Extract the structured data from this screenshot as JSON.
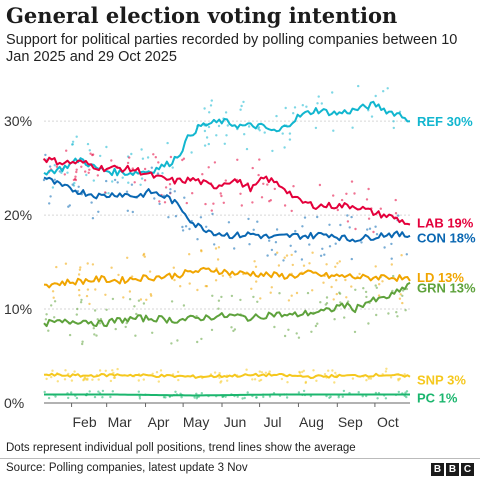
{
  "header": {
    "title": "General election voting intention",
    "subtitle": "Support for political parties recorded by polling companies between 10 Jan 2025 and 29 Oct 2025"
  },
  "footer": {
    "note": "Dots represent individual poll positions, trend lines show the average",
    "source": "Source: Polling companies, latest update 3 Nov",
    "logo": [
      "B",
      "B",
      "C"
    ]
  },
  "chart_data": {
    "type": "line",
    "x_range": [
      "2025-01-10",
      "2025-10-29"
    ],
    "y_range": [
      0,
      33
    ],
    "y_ticks": [
      {
        "value": 0,
        "label": "0%"
      },
      {
        "value": 10,
        "label": "10%"
      },
      {
        "value": 20,
        "label": "20%"
      },
      {
        "value": 30,
        "label": "30%"
      }
    ],
    "x_ticks": [
      {
        "date": "2025-02-01",
        "label": "Feb"
      },
      {
        "date": "2025-03-01",
        "label": "Mar"
      },
      {
        "date": "2025-04-01",
        "label": "Apr"
      },
      {
        "date": "2025-05-01",
        "label": "May"
      },
      {
        "date": "2025-06-01",
        "label": "Jun"
      },
      {
        "date": "2025-07-01",
        "label": "Jul"
      },
      {
        "date": "2025-08-01",
        "label": "Aug"
      },
      {
        "date": "2025-09-01",
        "label": "Sep"
      },
      {
        "date": "2025-10-01",
        "label": "Oct"
      }
    ],
    "series": [
      {
        "name": "REF",
        "label": "REF 30%",
        "color": "#12b6cf",
        "points": [
          [
            "2025-01-10",
            24.5
          ],
          [
            "2025-01-25",
            25.0
          ],
          [
            "2025-02-08",
            26.0
          ],
          [
            "2025-02-20",
            25.0
          ],
          [
            "2025-03-05",
            24.6
          ],
          [
            "2025-03-20",
            24.5
          ],
          [
            "2025-04-05",
            24.7
          ],
          [
            "2025-04-20",
            25.5
          ],
          [
            "2025-04-28",
            26.5
          ],
          [
            "2025-05-06",
            28.5
          ],
          [
            "2025-05-15",
            29.5
          ],
          [
            "2025-06-01",
            30.0
          ],
          [
            "2025-06-15",
            29.5
          ],
          [
            "2025-07-01",
            29.5
          ],
          [
            "2025-07-15",
            28.8
          ],
          [
            "2025-08-01",
            30.5
          ],
          [
            "2025-08-15",
            31.2
          ],
          [
            "2025-09-01",
            30.8
          ],
          [
            "2025-09-15",
            31.2
          ],
          [
            "2025-10-01",
            31.8
          ],
          [
            "2025-10-12",
            31.0
          ],
          [
            "2025-10-20",
            30.8
          ],
          [
            "2025-10-29",
            30.0
          ]
        ]
      },
      {
        "name": "LAB",
        "label": "LAB 19%",
        "color": "#e4003b",
        "points": [
          [
            "2025-01-10",
            26.0
          ],
          [
            "2025-01-25",
            25.6
          ],
          [
            "2025-02-10",
            25.6
          ],
          [
            "2025-02-25",
            25.0
          ],
          [
            "2025-03-10",
            25.0
          ],
          [
            "2025-03-25",
            24.8
          ],
          [
            "2025-04-10",
            24.0
          ],
          [
            "2025-04-25",
            23.6
          ],
          [
            "2025-05-10",
            23.8
          ],
          [
            "2025-05-25",
            23.0
          ],
          [
            "2025-06-10",
            23.8
          ],
          [
            "2025-06-25",
            22.8
          ],
          [
            "2025-07-05",
            24.0
          ],
          [
            "2025-07-20",
            23.0
          ],
          [
            "2025-08-01",
            21.5
          ],
          [
            "2025-08-15",
            21.0
          ],
          [
            "2025-09-01",
            21.0
          ],
          [
            "2025-09-15",
            21.0
          ],
          [
            "2025-10-01",
            20.2
          ],
          [
            "2025-10-15",
            19.8
          ],
          [
            "2025-10-29",
            19.0
          ]
        ]
      },
      {
        "name": "CON",
        "label": "CON 18%",
        "color": "#0a67b2",
        "points": [
          [
            "2025-01-10",
            24.0
          ],
          [
            "2025-01-25",
            23.0
          ],
          [
            "2025-02-08",
            22.5
          ],
          [
            "2025-02-25",
            22.0
          ],
          [
            "2025-03-10",
            22.3
          ],
          [
            "2025-03-25",
            22.0
          ],
          [
            "2025-04-05",
            22.5
          ],
          [
            "2025-04-20",
            21.8
          ],
          [
            "2025-05-01",
            20.5
          ],
          [
            "2025-05-10",
            19.0
          ],
          [
            "2025-05-25",
            18.2
          ],
          [
            "2025-06-10",
            17.8
          ],
          [
            "2025-06-25",
            18.0
          ],
          [
            "2025-07-10",
            17.6
          ],
          [
            "2025-07-25",
            17.8
          ],
          [
            "2025-08-10",
            17.8
          ],
          [
            "2025-08-25",
            18.0
          ],
          [
            "2025-09-10",
            17.4
          ],
          [
            "2025-09-25",
            17.6
          ],
          [
            "2025-10-10",
            18.0
          ],
          [
            "2025-10-20",
            17.9
          ],
          [
            "2025-10-29",
            17.8
          ]
        ]
      },
      {
        "name": "LD",
        "label": "LD 13%",
        "color": "#f0a500",
        "points": [
          [
            "2025-01-10",
            12.6
          ],
          [
            "2025-01-25",
            12.8
          ],
          [
            "2025-02-10",
            13.0
          ],
          [
            "2025-02-25",
            13.2
          ],
          [
            "2025-03-10",
            13.0
          ],
          [
            "2025-03-25",
            13.3
          ],
          [
            "2025-04-10",
            13.4
          ],
          [
            "2025-04-25",
            13.6
          ],
          [
            "2025-05-10",
            14.0
          ],
          [
            "2025-05-25",
            14.2
          ],
          [
            "2025-06-10",
            13.8
          ],
          [
            "2025-06-25",
            13.8
          ],
          [
            "2025-07-10",
            13.6
          ],
          [
            "2025-07-25",
            13.5
          ],
          [
            "2025-08-10",
            13.8
          ],
          [
            "2025-08-25",
            13.5
          ],
          [
            "2025-09-10",
            13.5
          ],
          [
            "2025-09-25",
            13.3
          ],
          [
            "2025-10-10",
            13.5
          ],
          [
            "2025-10-20",
            13.3
          ],
          [
            "2025-10-29",
            13.0
          ]
        ]
      },
      {
        "name": "GRN",
        "label": "GRN 13%",
        "color": "#5ea23c",
        "points": [
          [
            "2025-01-10",
            8.5
          ],
          [
            "2025-01-25",
            8.6
          ],
          [
            "2025-02-10",
            8.8
          ],
          [
            "2025-02-25",
            8.4
          ],
          [
            "2025-03-10",
            8.8
          ],
          [
            "2025-03-25",
            9.0
          ],
          [
            "2025-04-10",
            9.0
          ],
          [
            "2025-04-25",
            8.8
          ],
          [
            "2025-05-10",
            9.0
          ],
          [
            "2025-05-25",
            9.2
          ],
          [
            "2025-06-10",
            9.3
          ],
          [
            "2025-06-25",
            9.0
          ],
          [
            "2025-07-10",
            9.5
          ],
          [
            "2025-07-25",
            9.3
          ],
          [
            "2025-08-10",
            9.6
          ],
          [
            "2025-08-25",
            9.8
          ],
          [
            "2025-09-05",
            10.5
          ],
          [
            "2025-09-15",
            10.0
          ],
          [
            "2025-09-25",
            10.8
          ],
          [
            "2025-10-05",
            11.0
          ],
          [
            "2025-10-15",
            11.5
          ],
          [
            "2025-10-22",
            12.0
          ],
          [
            "2025-10-29",
            12.8
          ]
        ]
      },
      {
        "name": "SNP",
        "label": "SNP 3%",
        "color": "#f5c81e",
        "points": [
          [
            "2025-01-10",
            3.0
          ],
          [
            "2025-02-10",
            2.9
          ],
          [
            "2025-03-10",
            3.0
          ],
          [
            "2025-04-10",
            2.9
          ],
          [
            "2025-05-10",
            2.8
          ],
          [
            "2025-06-10",
            2.9
          ],
          [
            "2025-07-10",
            3.0
          ],
          [
            "2025-08-10",
            2.8
          ],
          [
            "2025-09-10",
            2.9
          ],
          [
            "2025-10-10",
            3.0
          ],
          [
            "2025-10-29",
            2.8
          ]
        ]
      },
      {
        "name": "PC",
        "label": "PC 1%",
        "color": "#1bb66e",
        "points": [
          [
            "2025-01-10",
            0.9
          ],
          [
            "2025-03-10",
            0.9
          ],
          [
            "2025-05-10",
            0.8
          ],
          [
            "2025-07-10",
            0.9
          ],
          [
            "2025-09-10",
            0.9
          ],
          [
            "2025-10-29",
            0.9
          ]
        ]
      }
    ]
  }
}
